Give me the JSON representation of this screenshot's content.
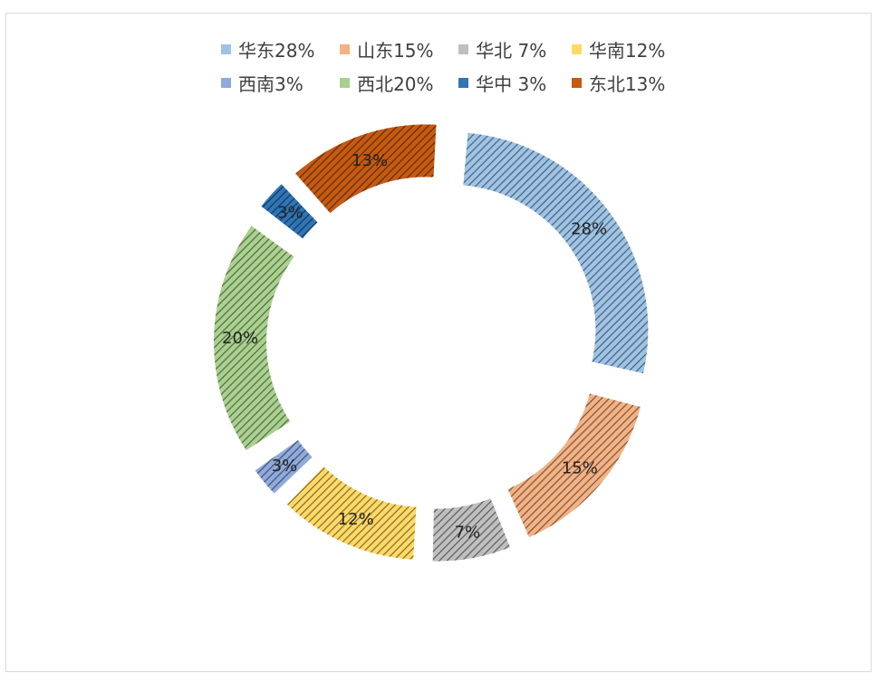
{
  "chart_data": {
    "type": "pie",
    "subtype": "donut-exploded",
    "pattern": "diagonal-hatch",
    "legend_position": "top",
    "categories": [
      "华东",
      "山东",
      "华北",
      "华南",
      "西南",
      "西北",
      "华中",
      "东北"
    ],
    "legend_labels": [
      "华东28%",
      "山东15%",
      "华北 7%",
      "华南12%",
      "西南3%",
      "西北20%",
      "华中 3%",
      "东北13%"
    ],
    "values": [
      28,
      15,
      7,
      12,
      3,
      20,
      3,
      13
    ],
    "data_labels": [
      "28%",
      "15%",
      "7%",
      "12%",
      "3%",
      "20%",
      "3%",
      "13%"
    ],
    "colors": [
      "#9DC3E6",
      "#F4B183",
      "#BFBFBF",
      "#FFD966",
      "#8FAADC",
      "#A9D18E",
      "#2E75B6",
      "#C55A11"
    ]
  }
}
